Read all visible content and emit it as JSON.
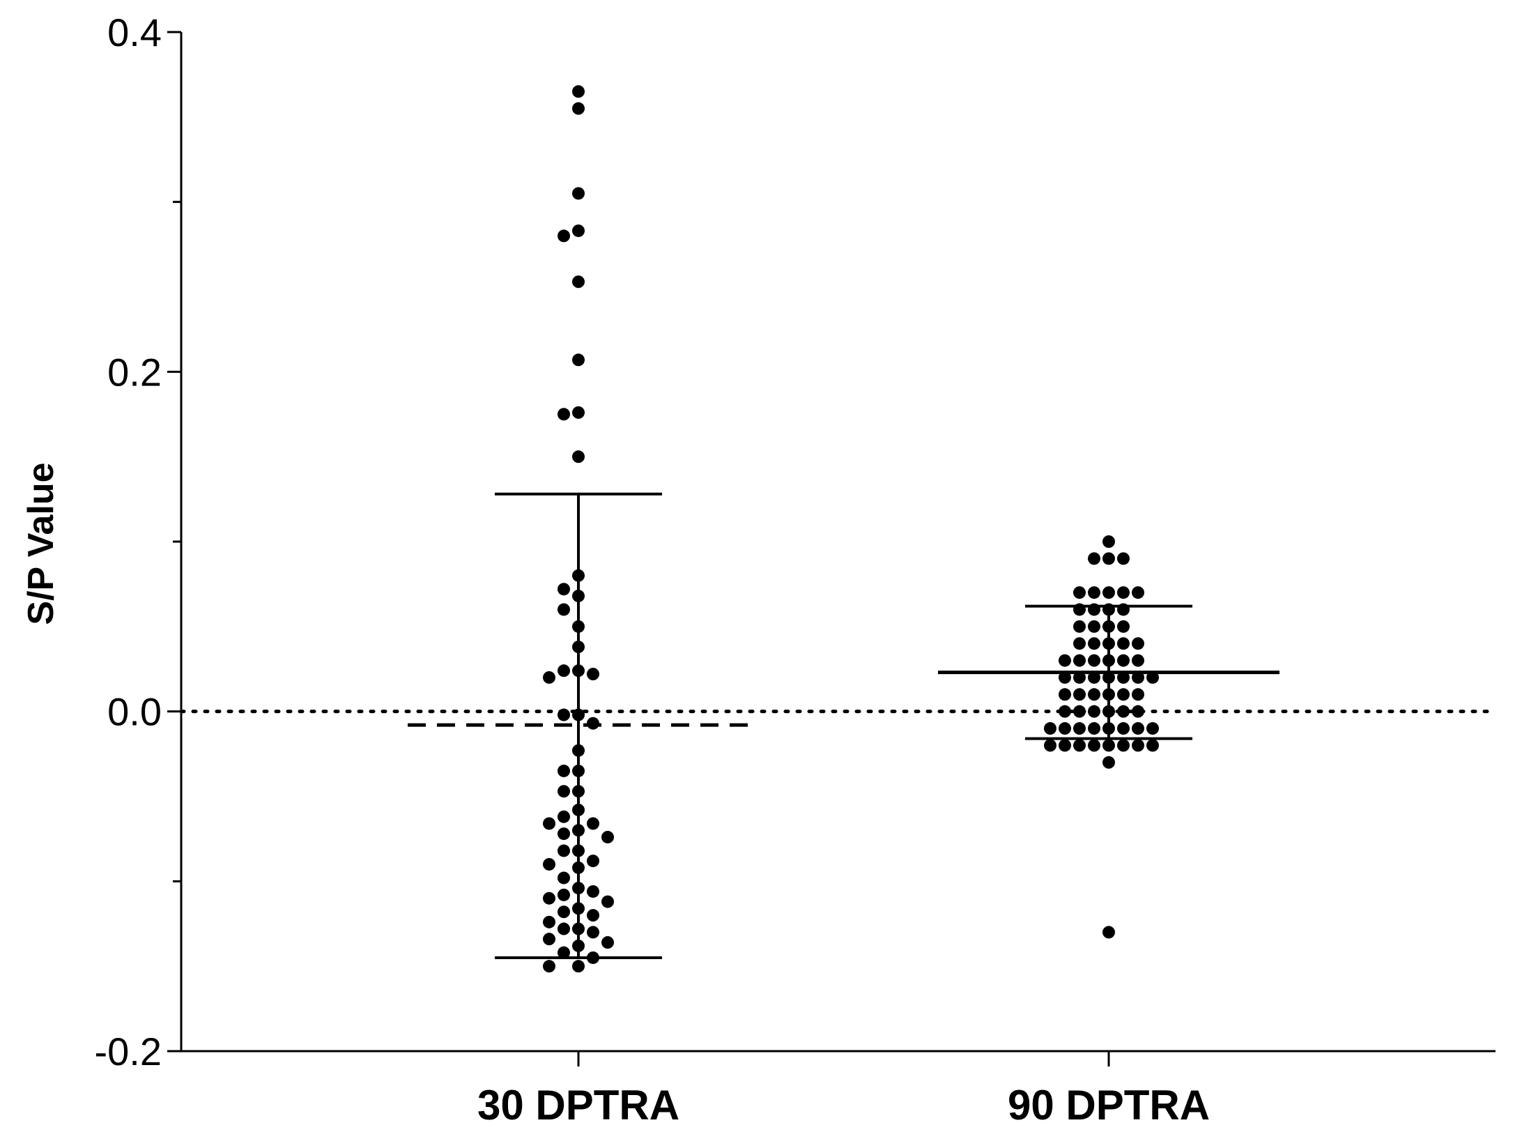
{
  "chart_data": {
    "type": "scatter",
    "title": "",
    "xlabel": "",
    "ylabel": "S/P Value",
    "ylim": [
      -0.2,
      0.4
    ],
    "yticks": [
      -0.2,
      0.0,
      0.2,
      0.4
    ],
    "ytick_labels": [
      "-0.2",
      "0.0",
      "0.2",
      "0.4"
    ],
    "grid": false,
    "reference_line": {
      "y": 0.0,
      "style": "dotted"
    },
    "categories": [
      "30 DPTRA",
      "90 DPTRA"
    ],
    "groups": [
      {
        "category": "30 DPTRA",
        "mean": -0.008,
        "error_upper": 0.128,
        "error_lower": -0.145,
        "mean_line_style": "dashed",
        "values": [
          0.365,
          0.355,
          0.305,
          0.283,
          0.28,
          0.253,
          0.207,
          0.176,
          0.175,
          0.15,
          0.08,
          0.072,
          0.068,
          0.06,
          0.05,
          0.038,
          0.024,
          0.024,
          0.022,
          0.02,
          -0.002,
          -0.002,
          -0.007,
          -0.023,
          -0.035,
          -0.035,
          -0.047,
          -0.047,
          -0.058,
          -0.062,
          -0.066,
          -0.066,
          -0.07,
          -0.072,
          -0.074,
          -0.082,
          -0.082,
          -0.088,
          -0.09,
          -0.092,
          -0.098,
          -0.104,
          -0.106,
          -0.108,
          -0.11,
          -0.112,
          -0.116,
          -0.118,
          -0.12,
          -0.124,
          -0.128,
          -0.128,
          -0.13,
          -0.134,
          -0.136,
          -0.138,
          -0.142,
          -0.145,
          -0.15,
          -0.15
        ]
      },
      {
        "category": "90 DPTRA",
        "mean": 0.023,
        "error_upper": 0.062,
        "error_lower": -0.016,
        "mean_line_style": "solid",
        "values": [
          0.1,
          0.09,
          0.09,
          0.09,
          0.07,
          0.07,
          0.07,
          0.07,
          0.07,
          0.06,
          0.06,
          0.06,
          0.06,
          0.05,
          0.05,
          0.05,
          0.05,
          0.04,
          0.04,
          0.04,
          0.04,
          0.04,
          0.03,
          0.03,
          0.03,
          0.03,
          0.03,
          0.03,
          0.02,
          0.02,
          0.02,
          0.02,
          0.02,
          0.02,
          0.02,
          0.01,
          0.01,
          0.01,
          0.01,
          0.01,
          0.01,
          0.0,
          0.0,
          0.0,
          0.0,
          0.0,
          0.0,
          -0.01,
          -0.01,
          -0.01,
          -0.01,
          -0.01,
          -0.01,
          -0.01,
          -0.01,
          -0.02,
          -0.02,
          -0.02,
          -0.02,
          -0.02,
          -0.02,
          -0.02,
          -0.02,
          -0.03,
          -0.13
        ]
      }
    ]
  }
}
